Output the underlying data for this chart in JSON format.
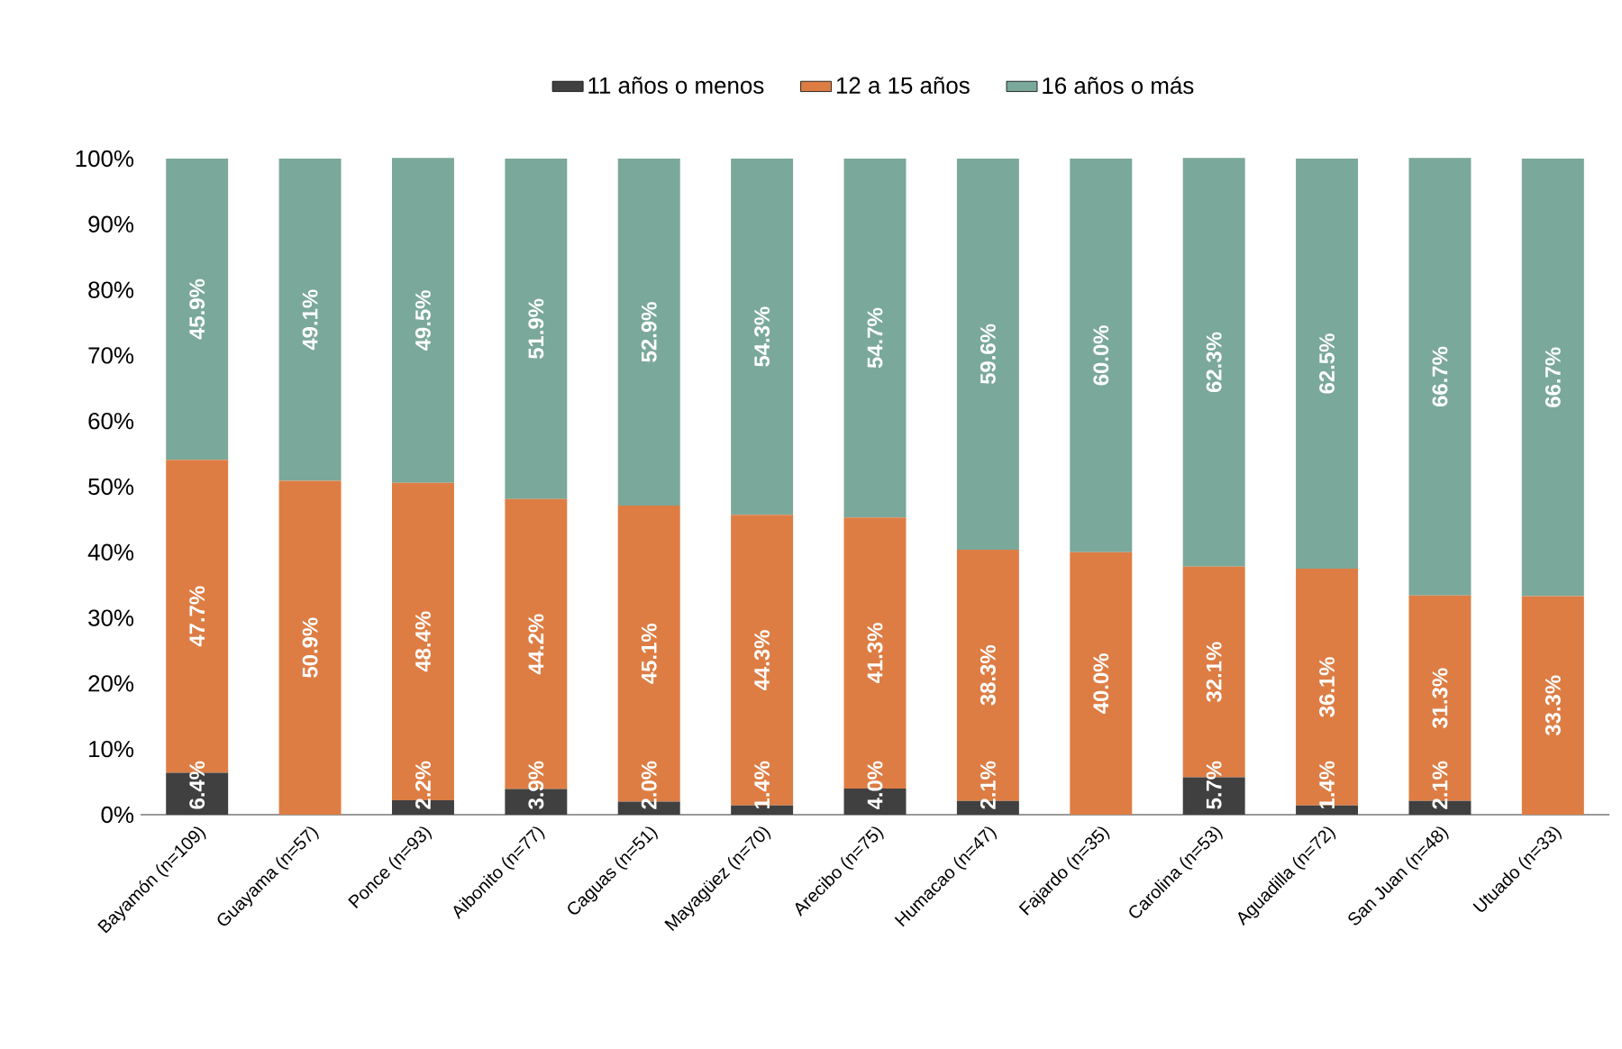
{
  "chart_data": {
    "type": "bar",
    "stacked": true,
    "legend": "top",
    "categories": [
      "Bayamón (n=109)",
      "Guayama (n=57)",
      "Ponce (n=93)",
      "Aibonito (n=77)",
      "Caguas (n=51)",
      "Mayagüez (n=70)",
      "Arecibo (n=75)",
      "Humacao (n=47)",
      "Fajardo (n=35)",
      "Carolina (n=53)",
      "Aguadilla (n=72)",
      "San Juan (n=48)",
      "Utuado (n=33)"
    ],
    "ylim": [
      0,
      100
    ],
    "yticks": [
      {
        "value": 0,
        "label": "0%"
      },
      {
        "value": 10,
        "label": "10%"
      },
      {
        "value": 20,
        "label": "20%"
      },
      {
        "value": 30,
        "label": "30%"
      },
      {
        "value": 40,
        "label": "40%"
      },
      {
        "value": 50,
        "label": "50%"
      },
      {
        "value": 60,
        "label": "60%"
      },
      {
        "value": 70,
        "label": "70%"
      },
      {
        "value": 80,
        "label": "80%"
      },
      {
        "value": 90,
        "label": "90%"
      },
      {
        "value": 100,
        "label": "100%"
      }
    ],
    "series": [
      {
        "name": "11 años o menos",
        "color": "#404040",
        "values": [
          6.4,
          0,
          2.2,
          3.9,
          2.0,
          1.4,
          4.0,
          2.1,
          0,
          5.7,
          1.4,
          2.1,
          0
        ],
        "value_labels": [
          "6.4%",
          null,
          "2.2%",
          "3.9%",
          "2.0%",
          "1.4%",
          "4.0%",
          "2.1%",
          null,
          "5.7%",
          "1.4%",
          "2.1%",
          null
        ]
      },
      {
        "name": "12 a 15 años",
        "color": "#dd7d44",
        "values": [
          47.7,
          50.9,
          48.4,
          44.2,
          45.1,
          44.3,
          41.3,
          38.3,
          40.0,
          32.1,
          36.1,
          31.3,
          33.3
        ],
        "value_labels": [
          "47.7%",
          "50.9%",
          "48.4%",
          "44.2%",
          "45.1%",
          "44.3%",
          "41.3%",
          "38.3%",
          "40.0%",
          "32.1%",
          "36.1%",
          "31.3%",
          "33.3%"
        ]
      },
      {
        "name": "16 años o más",
        "color": "#7aa89a",
        "values": [
          45.9,
          49.1,
          49.5,
          51.9,
          52.9,
          54.3,
          54.7,
          59.6,
          60.0,
          62.3,
          62.5,
          66.7,
          66.7
        ],
        "value_labels": [
          "45.9%",
          "49.1%",
          "49.5%",
          "51.9%",
          "52.9%",
          "54.3%",
          "54.7%",
          "59.6%",
          "60.0%",
          "62.3%",
          "62.5%",
          "66.7%",
          "66.7%"
        ]
      }
    ]
  }
}
